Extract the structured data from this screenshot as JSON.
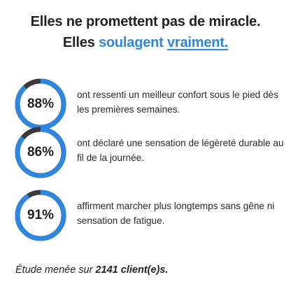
{
  "headline": {
    "line1": "Elles ne promettent pas de miracle.",
    "line2_start": "Elles",
    "line2_accent": "soulagent",
    "line2_accent_underlined": "vraiment."
  },
  "stats": [
    {
      "label": "88%",
      "value": 0.88,
      "description": "ont ressenti un meilleur confort sous le pied dès les premières semaines."
    },
    {
      "label": "86%",
      "value": 0.86,
      "description": "ont déclaré une sensation de légèreté durable au fil de la journée."
    },
    {
      "label": "91%",
      "value": 0.91,
      "description": "affirment marcher plus longtemps sans gêne ni sensation de fatigue."
    }
  ],
  "footer": {
    "prefix": "Étude menée sur",
    "count": "2141 client(e)s."
  },
  "colors": {
    "accent": "#2f86de",
    "ring_track": "#3a3a3a",
    "text": "#222222"
  }
}
